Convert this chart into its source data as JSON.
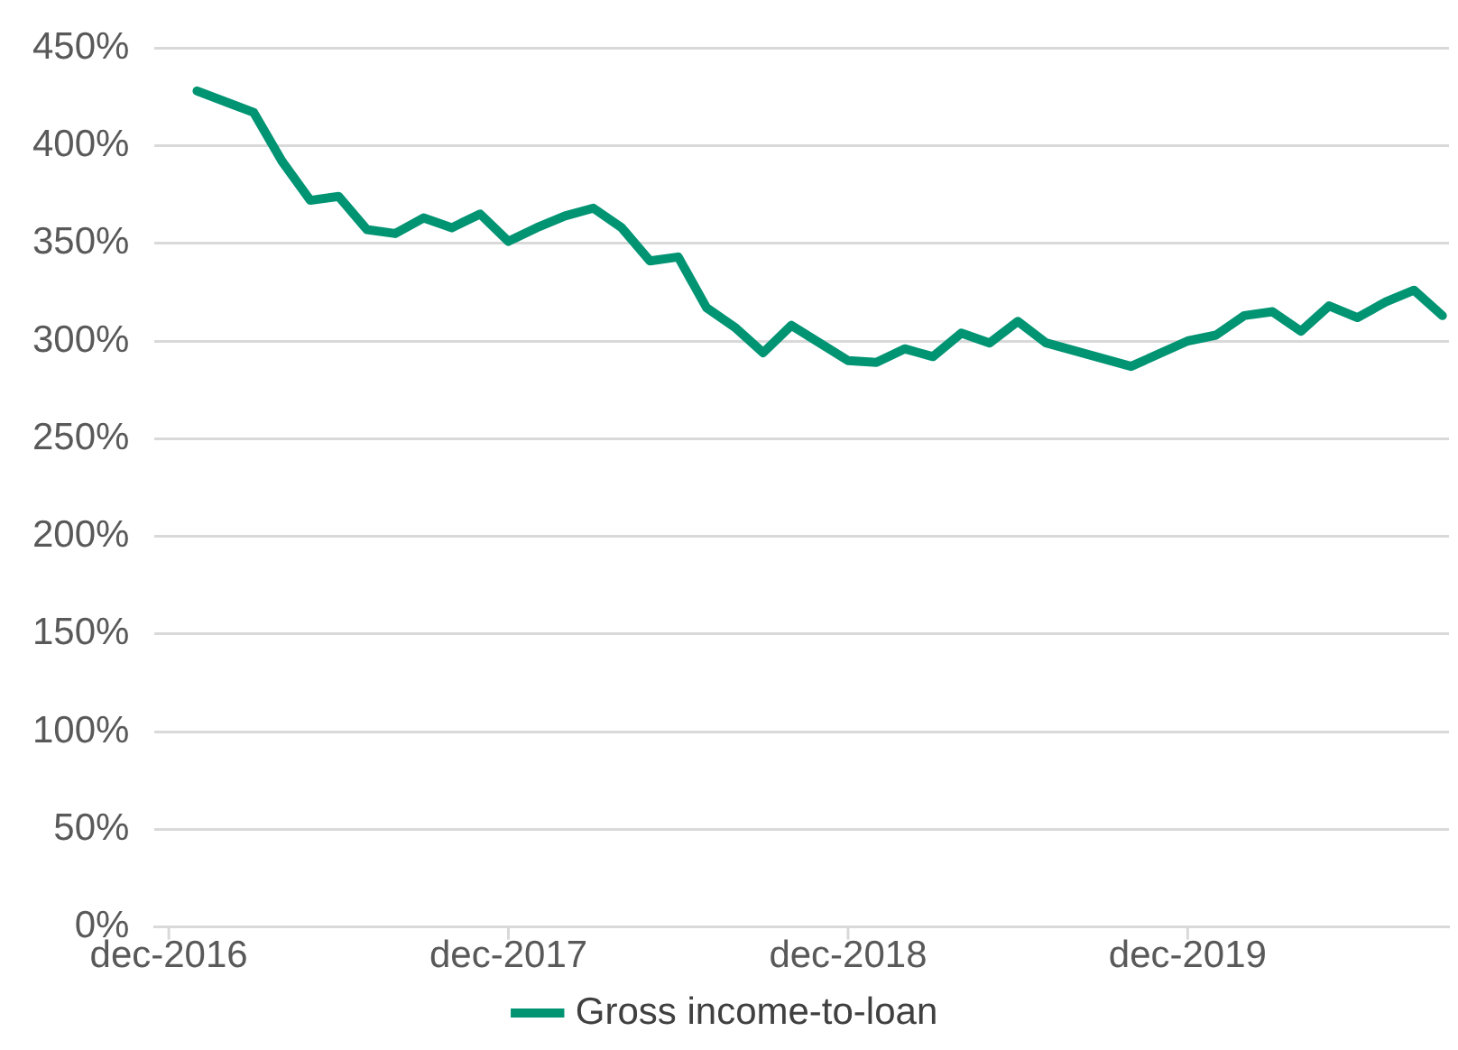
{
  "chart_data": {
    "type": "line",
    "x": [
      "2017-01",
      "2017-03",
      "2017-04",
      "2017-05",
      "2017-06",
      "2017-07",
      "2017-08",
      "2017-09",
      "2017-10",
      "2017-11",
      "2017-12",
      "2018-01",
      "2018-02",
      "2018-03",
      "2018-04",
      "2018-05",
      "2018-06",
      "2018-07",
      "2018-08",
      "2018-09",
      "2018-10",
      "2018-12",
      "2019-01",
      "2019-02",
      "2019-03",
      "2019-04",
      "2019-05",
      "2019-06",
      "2019-07",
      "2019-10",
      "2019-12",
      "2020-01",
      "2020-02",
      "2020-03",
      "2020-04",
      "2020-05",
      "2020-06",
      "2020-07",
      "2020-08",
      "2020-09"
    ],
    "series": [
      {
        "name": "Gross income-to-loan",
        "color": "#009473",
        "values": [
          428,
          417,
          392,
          372,
          374,
          357,
          355,
          363,
          358,
          365,
          351,
          358,
          364,
          368,
          358,
          341,
          343,
          317,
          307,
          294,
          308,
          290,
          289,
          296,
          292,
          304,
          299,
          310,
          299,
          287,
          300,
          303,
          313,
          315,
          305,
          318,
          312,
          320,
          326,
          313
        ]
      }
    ],
    "xlim": [
      "2016-11-16",
      "2020-09-08"
    ],
    "xticks": [
      {
        "value": "2016-12",
        "label": "dec-2016"
      },
      {
        "value": "2017-12",
        "label": "dec-2017"
      },
      {
        "value": "2018-12",
        "label": "dec-2018"
      },
      {
        "value": "2019-12",
        "label": "dec-2019"
      }
    ],
    "ylim": [
      0,
      450
    ],
    "yticks": [
      {
        "value": 0,
        "label": "0%"
      },
      {
        "value": 50,
        "label": "50%"
      },
      {
        "value": 100,
        "label": "100%"
      },
      {
        "value": 150,
        "label": "150%"
      },
      {
        "value": 200,
        "label": "200%"
      },
      {
        "value": 250,
        "label": "250%"
      },
      {
        "value": 300,
        "label": "300%"
      },
      {
        "value": 350,
        "label": "350%"
      },
      {
        "value": 400,
        "label": "400%"
      },
      {
        "value": 450,
        "label": "450%"
      }
    ],
    "grid": "y",
    "legend": "bottom",
    "marker": "none",
    "line_style": "solid"
  }
}
